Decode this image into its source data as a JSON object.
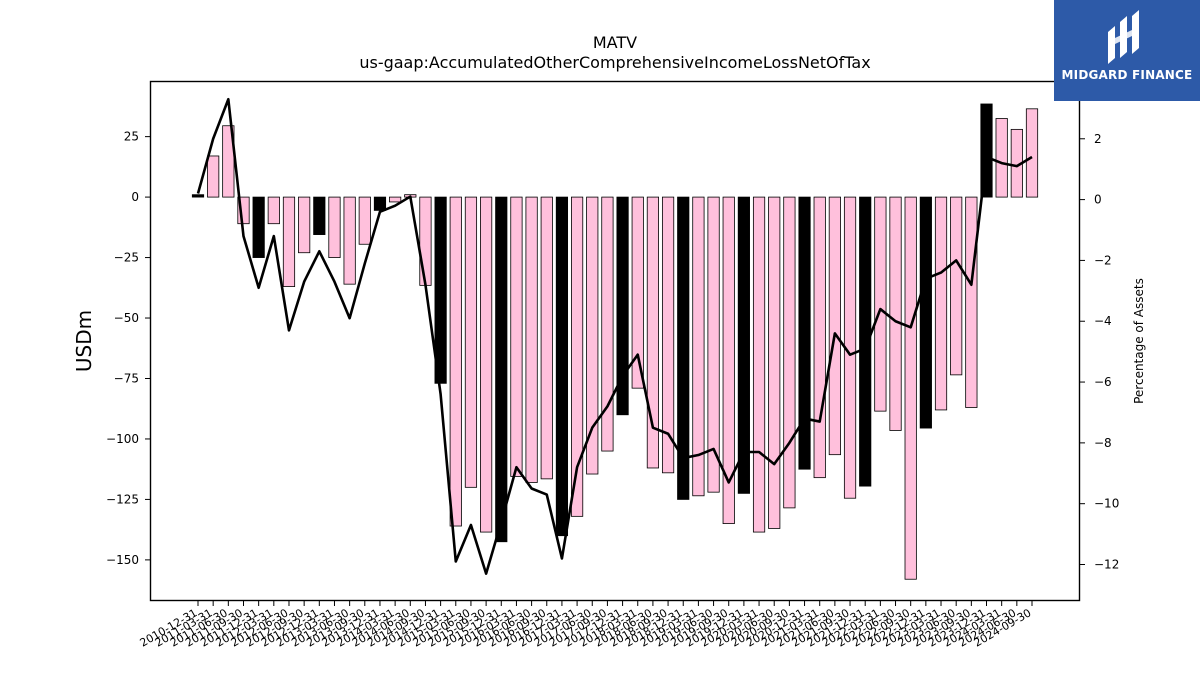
{
  "chart_data": {
    "type": "bar",
    "title": "MATV",
    "subtitle": "us-gaap:AccumulatedOtherComprehensiveIncomeLossNetOfTax",
    "ylabel": "USDm",
    "y2label": "Percentage of Assets",
    "ylim": [
      -167,
      48
    ],
    "y2lim": [
      -13.2,
      3.9
    ],
    "yticks": [
      25,
      0,
      -25,
      -50,
      -75,
      -100,
      -125,
      -150
    ],
    "y2ticks": [
      2,
      0,
      -2,
      -4,
      -6,
      -8,
      -10,
      -12
    ],
    "categories": [
      "2010-12-31",
      "2011-03-31",
      "2011-06-30",
      "2011-09-30",
      "2011-12-31",
      "2012-03-31",
      "2012-06-30",
      "2012-09-30",
      "2012-12-31",
      "2013-03-31",
      "2013-06-30",
      "2013-09-30",
      "2013-12-31",
      "2014-03-31",
      "2014-06-30",
      "2014-09-30",
      "2014-12-31",
      "2015-03-31",
      "2015-06-30",
      "2015-09-30",
      "2015-12-31",
      "2016-03-31",
      "2016-06-30",
      "2016-09-30",
      "2016-12-31",
      "2017-03-31",
      "2017-06-30",
      "2017-09-30",
      "2017-12-31",
      "2018-03-31",
      "2018-06-30",
      "2018-09-30",
      "2018-12-31",
      "2019-03-31",
      "2019-06-30",
      "2019-09-30",
      "2019-12-31",
      "2020-03-31",
      "2020-06-30",
      "2020-09-30",
      "2020-12-31",
      "2021-03-31",
      "2021-06-30",
      "2021-09-30",
      "2021-12-31",
      "2022-03-31",
      "2022-06-30",
      "2022-09-30",
      "2022-12-31",
      "2023-03-31",
      "2023-06-30",
      "2023-09-30",
      "2023-12-31",
      "2024-03-31",
      "2024-06-30",
      "2024-09-30"
    ],
    "series": [
      {
        "kind": "bar",
        "axis": "left",
        "values": [
          1,
          17,
          29.5,
          -11,
          -25,
          -11,
          -37,
          -23,
          -15.5,
          -25,
          -36,
          -19.5,
          -5.5,
          -2,
          1,
          -36.5,
          -77,
          -136,
          -120,
          -138.5,
          -142.5,
          -115.5,
          -118,
          -116.5,
          -140,
          -132,
          -114.5,
          -105,
          -90,
          -79,
          -112,
          -114,
          -125,
          -123.5,
          -122,
          -135,
          -122.5,
          -138.5,
          -137,
          -128.5,
          -112.5,
          -116,
          -106.5,
          -124.5,
          -119.5,
          -88.5,
          -96.5,
          -158,
          -95.5,
          -88,
          -73.5,
          -87,
          38.5,
          32.5,
          28,
          36.5
        ],
        "colors": [
          "#000000",
          "#ffc0dc",
          "#ffc0dc",
          "#ffc0dc",
          "#000000",
          "#ffc0dc",
          "#ffc0dc",
          "#ffc0dc",
          "#000000",
          "#ffc0dc",
          "#ffc0dc",
          "#ffc0dc",
          "#000000",
          "#ffc0dc",
          "#ffc0dc",
          "#ffc0dc",
          "#000000",
          "#ffc0dc",
          "#ffc0dc",
          "#ffc0dc",
          "#000000",
          "#ffc0dc",
          "#ffc0dc",
          "#ffc0dc",
          "#000000",
          "#ffc0dc",
          "#ffc0dc",
          "#ffc0dc",
          "#000000",
          "#ffc0dc",
          "#ffc0dc",
          "#ffc0dc",
          "#000000",
          "#ffc0dc",
          "#ffc0dc",
          "#ffc0dc",
          "#000000",
          "#ffc0dc",
          "#ffc0dc",
          "#ffc0dc",
          "#000000",
          "#ffc0dc",
          "#ffc0dc",
          "#ffc0dc",
          "#000000",
          "#ffc0dc",
          "#ffc0dc",
          "#ffc0dc",
          "#000000",
          "#ffc0dc",
          "#ffc0dc",
          "#ffc0dc",
          "#000000",
          "#ffc0dc",
          "#ffc0dc",
          "#ffc0dc"
        ]
      },
      {
        "kind": "line",
        "axis": "right",
        "color": "#000000",
        "values": [
          0.2,
          2,
          3.3,
          -1.2,
          -2.9,
          -1.2,
          -4.3,
          -2.7,
          -1.7,
          -2.7,
          -3.9,
          -2.1,
          -0.4,
          -0.2,
          0.1,
          -2.8,
          -6.4,
          -11.9,
          -10.7,
          -12.3,
          -10.6,
          -8.8,
          -9.5,
          -9.7,
          -11.8,
          -8.8,
          -7.5,
          -6.8,
          -5.8,
          -5.1,
          -7.5,
          -7.7,
          -8.5,
          -8.4,
          -8.2,
          -9.3,
          -8.3,
          -8.3,
          -8.7,
          -8.0,
          -7.2,
          -7.3,
          -4.4,
          -5.1,
          -4.9,
          -3.6,
          -4.0,
          -4.2,
          -2.6,
          -2.4,
          -2.0,
          -2.8,
          1.4,
          1.2,
          1.1,
          1.4
        ]
      }
    ],
    "grid": false,
    "legend": "none"
  },
  "logo": {
    "text": "MIDGARD FINANCE"
  },
  "colors": {
    "brand": "#2d5aa8",
    "bar_pink": "#ffc0dc",
    "bar_black": "#000000"
  }
}
